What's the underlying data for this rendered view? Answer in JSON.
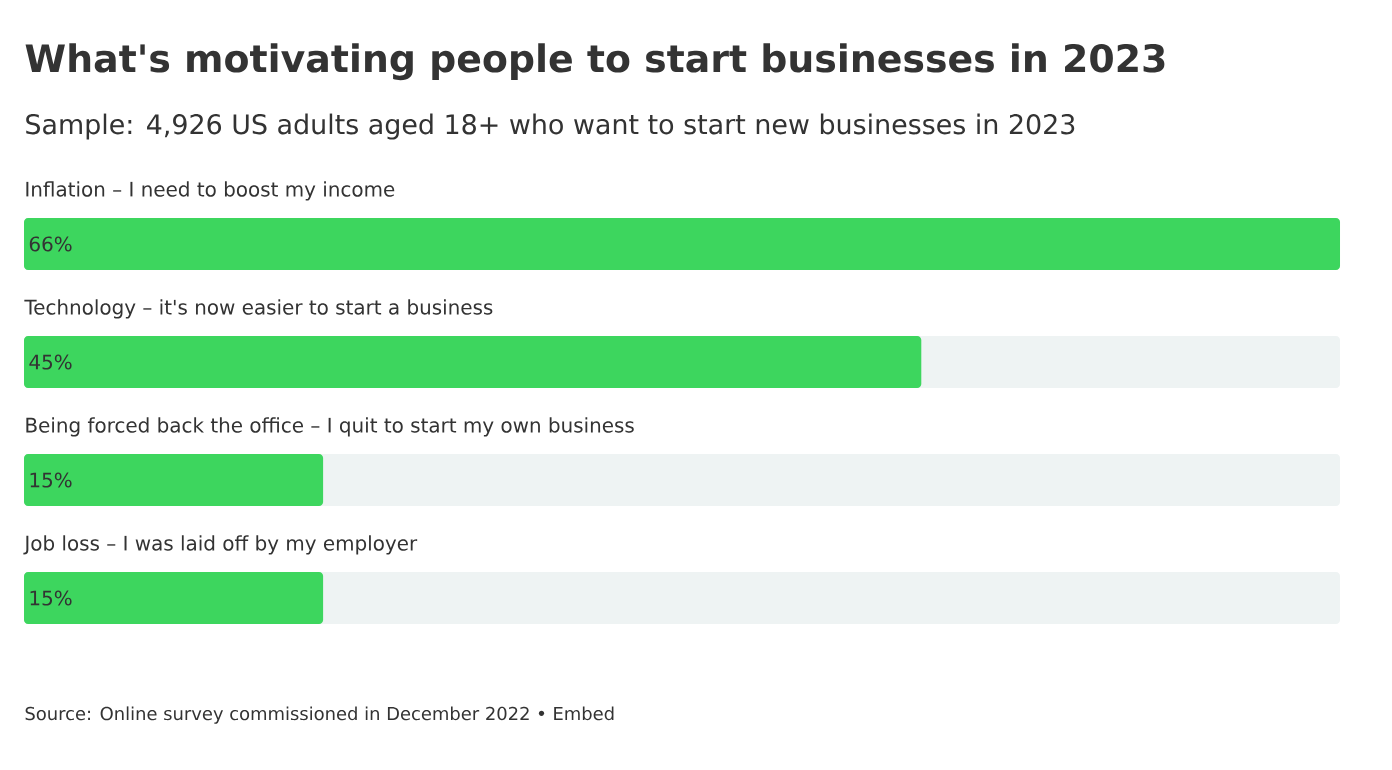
{
  "chart_data": {
    "type": "bar",
    "orientation": "horizontal",
    "title": "What's motivating people to start businesses in 2023",
    "subtitle": "Sample: 4,926 US adults aged 18+ who want to start new businesses in 2023",
    "categories": [
      "Inflation – I need to boost my income",
      "Technology – it's now easier to start a business",
      "Being forced back the office – I quit to start my own business",
      "Job loss – I was laid off by my employer"
    ],
    "values": [
      66,
      45,
      15,
      15
    ],
    "value_labels": [
      "66%",
      "45%",
      "15%",
      "15%"
    ],
    "color": "#3dd65e",
    "annotations": [
      "Source: Online survey commissioned in December 2022 • Embed"
    ]
  }
}
